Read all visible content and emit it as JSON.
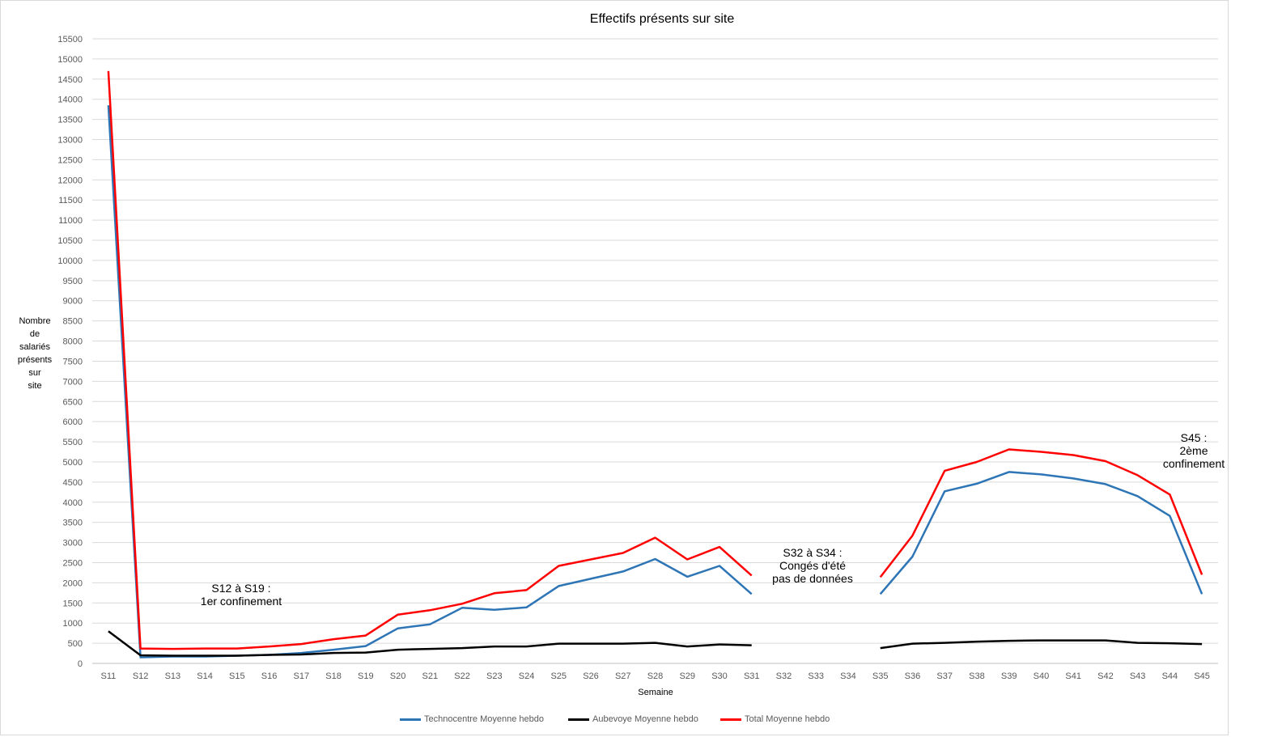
{
  "chart_data": {
    "type": "line",
    "title": "Effectifs présents sur site",
    "xlabel": "Semaine",
    "ylabel": "Nombre de salariés présents sur site",
    "ylabel_lines": [
      "Nombre",
      "de",
      "salariés",
      "présents",
      "sur",
      "site"
    ],
    "ylim": [
      0,
      15500
    ],
    "ytick_step": 500,
    "grid": true,
    "legend_placement": "bottom",
    "categories": [
      "S11",
      "S12",
      "S13",
      "S14",
      "S15",
      "S16",
      "S17",
      "S18",
      "S19",
      "S20",
      "S21",
      "S22",
      "S23",
      "S24",
      "S25",
      "S26",
      "S27",
      "S28",
      "S29",
      "S30",
      "S31",
      "S32",
      "S33",
      "S34",
      "S35",
      "S36",
      "S37",
      "S38",
      "S39",
      "S40",
      "S41",
      "S42",
      "S43",
      "S44",
      "S45"
    ],
    "series": [
      {
        "name": "Technocentre Moyenne hebdo",
        "color": "#2e75b6",
        "values": [
          13850,
          150,
          170,
          170,
          190,
          210,
          260,
          340,
          430,
          870,
          970,
          1380,
          1330,
          1390,
          1920,
          2100,
          2280,
          2590,
          2150,
          2420,
          1720,
          null,
          null,
          null,
          1720,
          2650,
          4270,
          4460,
          4750,
          4690,
          4590,
          4450,
          4150,
          3660,
          1720
        ]
      },
      {
        "name": "Aubevoye Moyenne hebdo",
        "color": "#000000",
        "values": [
          800,
          200,
          190,
          190,
          190,
          210,
          220,
          260,
          270,
          340,
          360,
          380,
          420,
          420,
          490,
          490,
          490,
          510,
          420,
          470,
          450,
          null,
          null,
          null,
          380,
          490,
          510,
          540,
          560,
          570,
          570,
          570,
          510,
          500,
          480
        ]
      },
      {
        "name": "Total Moyenne hebdo",
        "color": "#ff0000",
        "values": [
          14700,
          370,
          360,
          370,
          370,
          420,
          480,
          600,
          690,
          1210,
          1320,
          1480,
          1740,
          1820,
          2420,
          2580,
          2740,
          3120,
          2580,
          2890,
          2180,
          null,
          null,
          null,
          2140,
          3170,
          4780,
          5000,
          5310,
          5250,
          5170,
          5020,
          4670,
          4190,
          2200
        ]
      }
    ],
    "annotations": [
      {
        "id": "conf1",
        "text": [
          "S12 à S19 :",
          "1er confinement"
        ]
      },
      {
        "id": "conges",
        "text": [
          "S32  à S34 :",
          "Congés d'été",
          "pas de données"
        ]
      },
      {
        "id": "conf2",
        "text": [
          "S45 :",
          "2ème",
          "confinement"
        ]
      }
    ]
  }
}
